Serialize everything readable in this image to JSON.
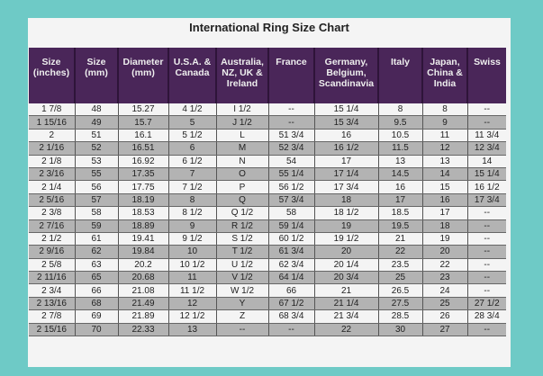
{
  "title": "International Ring Size Chart",
  "colors": {
    "background": "#6ecac6",
    "header": "#4a2659",
    "row_alt": "#b3b3b3"
  },
  "headers": [
    "Size (inches)",
    "Size (mm)",
    "Diameter (mm)",
    "U.S.A. & Canada",
    "Australia, NZ, UK & Ireland",
    "France",
    "Germany, Belgium, Scandinavia",
    "Italy",
    "Japan, China & India",
    "Swiss"
  ],
  "rows": [
    [
      "1  7/8",
      "48",
      "15.27",
      "4 1/2",
      "I 1/2",
      "--",
      "15 1/4",
      "8",
      "8",
      "--"
    ],
    [
      "1 15/16",
      "49",
      "15.7",
      "5",
      "J 1/2",
      "--",
      "15 3/4",
      "9.5",
      "9",
      "--"
    ],
    [
      "2",
      "51",
      "16.1",
      "5 1/2",
      "L",
      "51 3/4",
      "16",
      "10.5",
      "11",
      "11 3/4"
    ],
    [
      "2  1/16",
      "52",
      "16.51",
      "6",
      "M",
      "52 3/4",
      "16 1/2",
      "11.5",
      "12",
      "12 3/4"
    ],
    [
      "2  1/8",
      "53",
      "16.92",
      "6 1/2",
      "N",
      "54",
      "17",
      "13",
      "13",
      "14"
    ],
    [
      "2  3/16",
      "55",
      "17.35",
      "7",
      "O",
      "55 1/4",
      "17 1/4",
      "14.5",
      "14",
      "15 1/4"
    ],
    [
      "2  1/4",
      "56",
      "17.75",
      "7 1/2",
      "P",
      "56 1/2",
      "17 3/4",
      "16",
      "15",
      "16 1/2"
    ],
    [
      "2  5/16",
      "57",
      "18.19",
      "8",
      "Q",
      "57 3/4",
      "18",
      "17",
      "16",
      "17 3/4"
    ],
    [
      "2  3/8",
      "58",
      "18.53",
      "8 1/2",
      "Q 1/2",
      "58",
      "18 1/2",
      "18.5",
      "17",
      "--"
    ],
    [
      "2  7/16",
      "59",
      "18.89",
      "9",
      "R 1/2",
      "59 1/4",
      "19",
      "19.5",
      "18",
      "--"
    ],
    [
      "2  1/2",
      "61",
      "19.41",
      "9 1/2",
      "S 1/2",
      "60 1/2",
      "19 1/2",
      "21",
      "19",
      "--"
    ],
    [
      "2  9/16",
      "62",
      "19.84",
      "10",
      "T 1/2",
      "61 3/4",
      "20",
      "22",
      "20",
      "--"
    ],
    [
      "2  5/8",
      "63",
      "20.2",
      "10 1/2",
      "U 1/2",
      "62 3/4",
      "20 1/4",
      "23.5",
      "22",
      "--"
    ],
    [
      "2 11/16",
      "65",
      "20.68",
      "11",
      "V 1/2",
      "64 1/4",
      "20 3/4",
      "25",
      "23",
      "--"
    ],
    [
      "2  3/4",
      "66",
      "21.08",
      "11 1/2",
      "W 1/2",
      "66",
      "21",
      "26.5",
      "24",
      "--"
    ],
    [
      "2 13/16",
      "68",
      "21.49",
      "12",
      "Y",
      "67 1/2",
      "21 1/4",
      "27.5",
      "25",
      "27 1/2"
    ],
    [
      "2  7/8",
      "69",
      "21.89",
      "12 1/2",
      "Z",
      "68 3/4",
      "21 3/4",
      "28.5",
      "26",
      "28 3/4"
    ],
    [
      "2 15/16",
      "70",
      "22.33",
      "13",
      "--",
      "--",
      "22",
      "30",
      "27",
      "--"
    ]
  ]
}
